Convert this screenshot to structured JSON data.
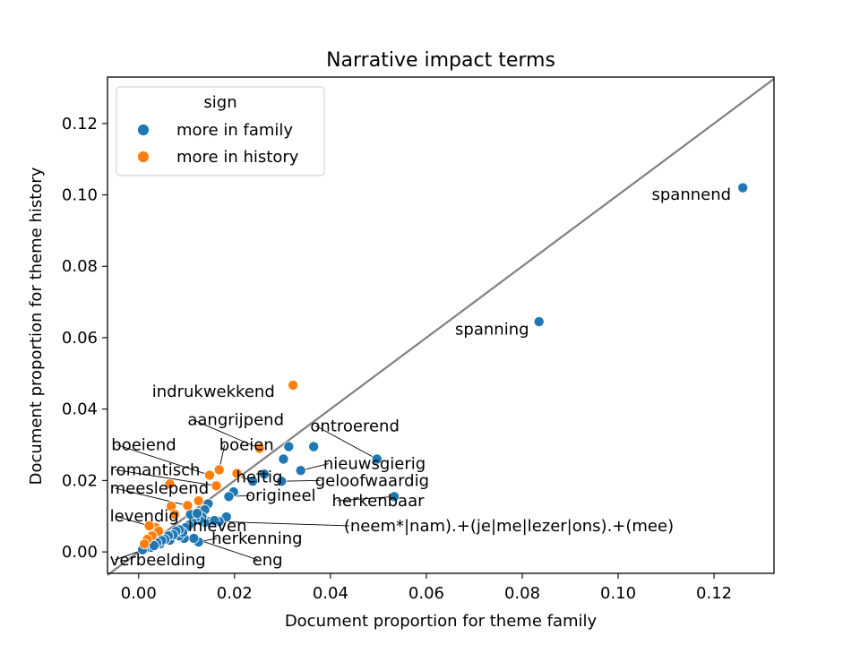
{
  "chart_data": {
    "type": "scatter",
    "title": "Narrative impact terms",
    "xlabel": "Document proportion for theme family",
    "ylabel": "Document proportion for theme history",
    "xlim": [
      -0.0065,
      0.1325
    ],
    "ylim": [
      -0.006,
      0.133
    ],
    "xticks": [
      "0.00",
      "0.02",
      "0.04",
      "0.06",
      "0.08",
      "0.10",
      "0.12"
    ],
    "yticks": [
      "0.00",
      "0.02",
      "0.04",
      "0.06",
      "0.08",
      "0.10",
      "0.12"
    ],
    "grid": false,
    "legend": {
      "title": "sign",
      "placement": "top-left",
      "entries": [
        "more in family",
        "more in history"
      ]
    },
    "colors": {
      "more in family": "#1f77b4",
      "more in history": "#ff7f0e",
      "diagonal": "#808080"
    },
    "diagonal": [
      [
        -0.0065,
        -0.0065
      ],
      [
        0.1325,
        0.1325
      ]
    ],
    "series": [
      {
        "name": "more in family",
        "points": [
          [
            0.126,
            0.102
          ],
          [
            0.0835,
            0.0645
          ],
          [
            0.0533,
            0.0155
          ],
          [
            0.0497,
            0.026
          ],
          [
            0.0365,
            0.0295
          ],
          [
            0.0338,
            0.0228
          ],
          [
            0.0313,
            0.0295
          ],
          [
            0.0302,
            0.026
          ],
          [
            0.0298,
            0.0198
          ],
          [
            0.0262,
            0.0218
          ],
          [
            0.0238,
            0.0198
          ],
          [
            0.0198,
            0.0168
          ],
          [
            0.0188,
            0.0155
          ],
          [
            0.0183,
            0.0098
          ],
          [
            0.0168,
            0.0085
          ],
          [
            0.0155,
            0.0083
          ],
          [
            0.0145,
            0.0085
          ],
          [
            0.0138,
            0.0083
          ],
          [
            0.0125,
            0.0028
          ],
          [
            0.0115,
            0.0038
          ],
          [
            0.0095,
            0.0038
          ],
          [
            0.0085,
            0.0045
          ],
          [
            0.0065,
            0.0033
          ],
          [
            0.0045,
            0.0023
          ],
          [
            0.0025,
            0.0013
          ],
          [
            0.0012,
            0.0008
          ],
          [
            0.0008,
            0.0006
          ],
          [
            0.0145,
            0.0135
          ],
          [
            0.0138,
            0.0118
          ],
          [
            0.0132,
            0.0098
          ],
          [
            0.0128,
            0.0088
          ],
          [
            0.0118,
            0.0095
          ],
          [
            0.0112,
            0.0082
          ],
          [
            0.0105,
            0.0075
          ],
          [
            0.0098,
            0.0068
          ],
          [
            0.0092,
            0.0055
          ],
          [
            0.0085,
            0.0062
          ],
          [
            0.0078,
            0.0058
          ],
          [
            0.0072,
            0.0048
          ],
          [
            0.0062,
            0.0045
          ],
          [
            0.0055,
            0.0035
          ],
          [
            0.0048,
            0.0032
          ],
          [
            0.0038,
            0.0025
          ],
          [
            0.0032,
            0.0018
          ],
          [
            0.0108,
            0.0105
          ],
          [
            0.0122,
            0.0108
          ],
          [
            0.0158,
            0.0088
          ]
        ]
      },
      {
        "name": "more in history",
        "points": [
          [
            0.0322,
            0.0467
          ],
          [
            0.0252,
            0.029
          ],
          [
            0.0168,
            0.023
          ],
          [
            0.0205,
            0.022
          ],
          [
            0.0148,
            0.0215
          ],
          [
            0.0162,
            0.0185
          ],
          [
            0.0065,
            0.019
          ],
          [
            0.0068,
            0.0128
          ],
          [
            0.0102,
            0.013
          ],
          [
            0.0125,
            0.0143
          ],
          [
            0.0075,
            0.0105
          ],
          [
            0.0035,
            0.0068
          ],
          [
            0.0022,
            0.0073
          ],
          [
            0.0042,
            0.0058
          ],
          [
            0.0028,
            0.0045
          ],
          [
            0.0018,
            0.0035
          ],
          [
            0.0012,
            0.0022
          ]
        ]
      }
    ],
    "annotations": [
      {
        "text": "spannend",
        "x": 0.107,
        "y": 0.0986
      },
      {
        "text": "spanning",
        "x": 0.066,
        "y": 0.0609
      },
      {
        "text": "indrukwekkend",
        "x": 0.0028,
        "y": 0.0434
      },
      {
        "text": "aangrijpend",
        "x": 0.0102,
        "y": 0.0355,
        "arrow_to": [
          0.0252,
          0.029
        ]
      },
      {
        "text": "ontroerend",
        "x": 0.0358,
        "y": 0.0338,
        "arrow_to": [
          0.0497,
          0.026
        ]
      },
      {
        "text": "boeiend",
        "x": -0.0057,
        "y": 0.0285,
        "arrow_to": [
          0.0148,
          0.0215
        ]
      },
      {
        "text": "boeien",
        "x": 0.0168,
        "y": 0.0285,
        "arrow_to": [
          0.0168,
          0.023
        ]
      },
      {
        "text": "nieuwsgierig",
        "x": 0.0385,
        "y": 0.0232,
        "arrow_to": [
          0.0338,
          0.0228
        ]
      },
      {
        "text": "romantisch",
        "x": -0.006,
        "y": 0.0215,
        "arrow_to": [
          0.0162,
          0.0185
        ]
      },
      {
        "text": "heftig",
        "x": 0.0203,
        "y": 0.0195,
        "arrow_to": [
          0.0238,
          0.0198
        ]
      },
      {
        "text": "geloofwaardig",
        "x": 0.0368,
        "y": 0.0185,
        "arrow_to": [
          0.0298,
          0.0198
        ]
      },
      {
        "text": "meeslepend",
        "x": -0.006,
        "y": 0.0163,
        "arrow_to": [
          0.0102,
          0.013
        ]
      },
      {
        "text": "origineel",
        "x": 0.0223,
        "y": 0.0143,
        "arrow_to": [
          0.0188,
          0.0155
        ]
      },
      {
        "text": "herkenbaar",
        "x": 0.0403,
        "y": 0.0128,
        "arrow_to": [
          0.0533,
          0.0155
        ]
      },
      {
        "text": "levendig",
        "x": -0.006,
        "y": 0.0085,
        "arrow_to": [
          0.0035,
          0.0068
        ]
      },
      {
        "text": "inleven",
        "x": 0.0103,
        "y": 0.0058,
        "arrow_to": [
          0.0145,
          0.0085
        ]
      },
      {
        "text": "(neem*|nam).+(je|me|lezer|ons).+(mee)",
        "x": 0.0428,
        "y": 0.0058,
        "arrow_to": [
          0.0168,
          0.0085
        ]
      },
      {
        "text": "herkenning",
        "x": 0.0152,
        "y": 0.0023,
        "arrow_to": [
          0.0125,
          0.0028
        ]
      },
      {
        "text": "verbeelding",
        "x": -0.006,
        "y": -0.0037,
        "arrow_to": [
          0.0045,
          0.0023
        ]
      },
      {
        "text": "eng",
        "x": 0.0237,
        "y": -0.0037,
        "arrow_to": [
          0.0115,
          0.0038
        ]
      }
    ]
  }
}
